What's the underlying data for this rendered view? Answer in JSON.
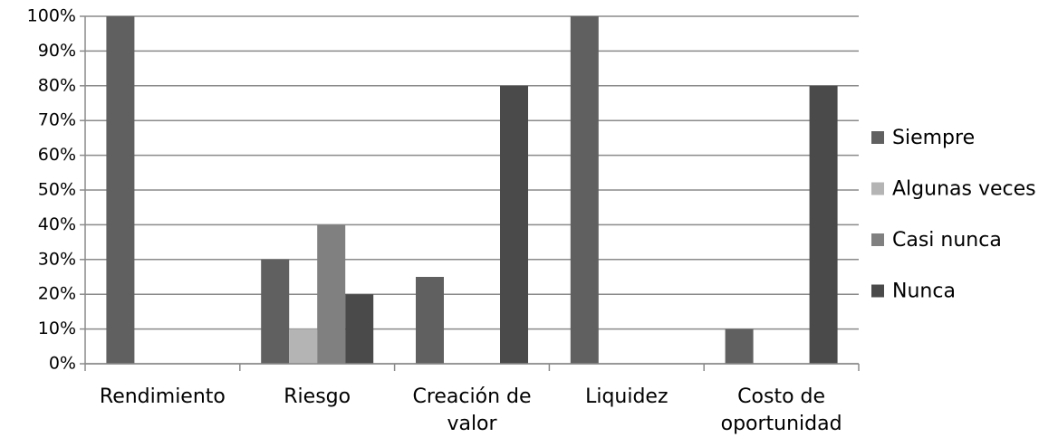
{
  "chart_data": {
    "type": "bar",
    "categories": [
      "Rendimiento",
      "Riesgo",
      "Creación de valor",
      "Liquidez",
      "Costo de oportunidad"
    ],
    "series": [
      {
        "name": "Siempre",
        "color": "#606060",
        "values": [
          100,
          30,
          25,
          100,
          10
        ]
      },
      {
        "name": "Algunas veces",
        "color": "#b4b4b4",
        "values": [
          0,
          10,
          0,
          0,
          0
        ]
      },
      {
        "name": "Casi nunca",
        "color": "#808080",
        "values": [
          0,
          40,
          0,
          0,
          0
        ]
      },
      {
        "name": "Nunca",
        "color": "#4a4a4a",
        "values": [
          0,
          20,
          80,
          0,
          80
        ]
      }
    ],
    "ylim": [
      0,
      100
    ],
    "yticks": [
      {
        "value": 0,
        "label": "0%"
      },
      {
        "value": 10,
        "label": "10%"
      },
      {
        "value": 20,
        "label": "20%"
      },
      {
        "value": 30,
        "label": "30%"
      },
      {
        "value": 40,
        "label": "40%"
      },
      {
        "value": 50,
        "label": "50%"
      },
      {
        "value": 60,
        "label": "60%"
      },
      {
        "value": 70,
        "label": "70%"
      },
      {
        "value": 80,
        "label": "80%"
      },
      {
        "value": 90,
        "label": "90%"
      },
      {
        "value": 100,
        "label": "100%"
      }
    ],
    "grid": true,
    "legend": "right"
  }
}
